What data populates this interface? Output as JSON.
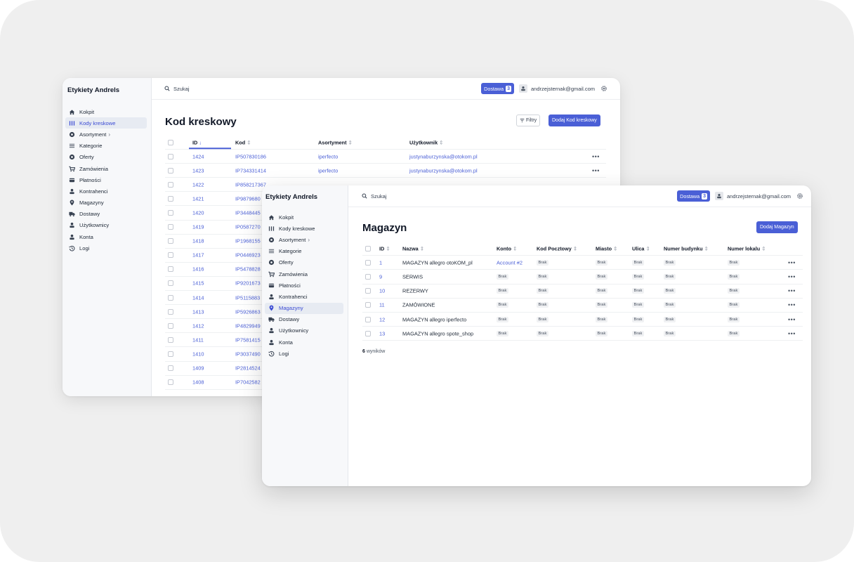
{
  "back_window": {
    "brand": "Etykiety Andrels",
    "search_placeholder": "Szukaj",
    "delivery": {
      "label": "Dostawa",
      "count": "3"
    },
    "user_email": "andrzejsternak@gmail.com",
    "page_title": "Kod kreskowy",
    "filter_label": "Filtry",
    "add_button": "Dodaj Kod kreskowy",
    "nav": [
      {
        "label": "Kokpit",
        "icon": "home-icon"
      },
      {
        "label": "Kody kreskowe",
        "icon": "barcode-icon"
      },
      {
        "label": "Asortyment",
        "icon": "box-icon"
      },
      {
        "label": "Kategorie",
        "icon": "list-icon"
      },
      {
        "label": "Oferty",
        "icon": "tag-icon"
      },
      {
        "label": "Zamówienia",
        "icon": "cart-icon"
      },
      {
        "label": "Płatności",
        "icon": "card-icon"
      },
      {
        "label": "Kontrahenci",
        "icon": "contractor-icon"
      },
      {
        "label": "Magazyny",
        "icon": "pin-icon"
      },
      {
        "label": "Dostawy",
        "icon": "truck-icon"
      },
      {
        "label": "Użytkownicy",
        "icon": "user-icon"
      },
      {
        "label": "Konta",
        "icon": "account-icon"
      },
      {
        "label": "Logi",
        "icon": "history-icon"
      }
    ],
    "table": {
      "headers": {
        "id": "ID",
        "kod": "Kod",
        "asortyment": "Asortyment",
        "uzytkownik": "Użytkownik"
      },
      "rows": [
        {
          "id": "1424",
          "kod": "IP507830186",
          "asortyment": "iperfecto",
          "user": "justynaburzynska@otokom.pl"
        },
        {
          "id": "1423",
          "kod": "IP734331414",
          "asortyment": "iperfecto",
          "user": "justynaburzynska@otokom.pl"
        },
        {
          "id": "1422",
          "kod": "IP858217367",
          "asortyment": "",
          "user": ""
        },
        {
          "id": "1421",
          "kod": "IP9879680",
          "asortyment": "",
          "user": ""
        },
        {
          "id": "1420",
          "kod": "IP3448445",
          "asortyment": "",
          "user": ""
        },
        {
          "id": "1419",
          "kod": "IP0587270",
          "asortyment": "",
          "user": ""
        },
        {
          "id": "1418",
          "kod": "IP1968155",
          "asortyment": "",
          "user": ""
        },
        {
          "id": "1417",
          "kod": "IP0446923",
          "asortyment": "",
          "user": ""
        },
        {
          "id": "1416",
          "kod": "IP5478828",
          "asortyment": "",
          "user": ""
        },
        {
          "id": "1415",
          "kod": "IP9201673",
          "asortyment": "",
          "user": ""
        },
        {
          "id": "1414",
          "kod": "IP5115883",
          "asortyment": "",
          "user": ""
        },
        {
          "id": "1413",
          "kod": "IP5926863",
          "asortyment": "",
          "user": ""
        },
        {
          "id": "1412",
          "kod": "IP4829949",
          "asortyment": "",
          "user": ""
        },
        {
          "id": "1411",
          "kod": "IP7581415",
          "asortyment": "",
          "user": ""
        },
        {
          "id": "1410",
          "kod": "IP3037490",
          "asortyment": "",
          "user": ""
        },
        {
          "id": "1409",
          "kod": "IP2814524",
          "asortyment": "",
          "user": ""
        },
        {
          "id": "1408",
          "kod": "IP7042582",
          "asortyment": "",
          "user": ""
        }
      ]
    }
  },
  "front_window": {
    "brand": "Etykiety Andrels",
    "search_placeholder": "Szukaj",
    "delivery": {
      "label": "Dostawa",
      "count": "3"
    },
    "user_email": "andrzejsternak@gmail.com",
    "page_title": "Magazyn",
    "add_button": "Dodaj Magazyn",
    "nav": [
      {
        "label": "Kokpit",
        "icon": "home-icon"
      },
      {
        "label": "Kody kreskowe",
        "icon": "barcode-icon"
      },
      {
        "label": "Asortyment",
        "icon": "box-icon"
      },
      {
        "label": "Kategorie",
        "icon": "list-icon"
      },
      {
        "label": "Oferty",
        "icon": "tag-icon"
      },
      {
        "label": "Zamówienia",
        "icon": "cart-icon"
      },
      {
        "label": "Płatności",
        "icon": "card-icon"
      },
      {
        "label": "Kontrahenci",
        "icon": "contractor-icon"
      },
      {
        "label": "Magazyny",
        "icon": "pin-icon"
      },
      {
        "label": "Dostawy",
        "icon": "truck-icon"
      },
      {
        "label": "Użytkownicy",
        "icon": "user-icon"
      },
      {
        "label": "Konta",
        "icon": "account-icon"
      },
      {
        "label": "Logi",
        "icon": "history-icon"
      }
    ],
    "table": {
      "headers": {
        "id": "ID",
        "nazwa": "Nazwa",
        "konto": "Konto",
        "kod": "Kod Pocztowy",
        "miasto": "Miasto",
        "ulica": "Ulica",
        "nr_budynku": "Numer budynku",
        "nr_lokalu": "Numer lokalu"
      },
      "rows": [
        {
          "id": "1",
          "nazwa": "MAGAZYN allegro otoKOM_pl",
          "konto": "Account #2",
          "kod": "Brak",
          "miasto": "Brak",
          "ulica": "Brak",
          "nr_budynku": "Brak",
          "nr_lokalu": "Brak"
        },
        {
          "id": "9",
          "nazwa": "SERWIS",
          "konto": "Brak",
          "kod": "Brak",
          "miasto": "Brak",
          "ulica": "Brak",
          "nr_budynku": "Brak",
          "nr_lokalu": "Brak"
        },
        {
          "id": "10",
          "nazwa": "REZERWY",
          "konto": "Brak",
          "kod": "Brak",
          "miasto": "Brak",
          "ulica": "Brak",
          "nr_budynku": "Brak",
          "nr_lokalu": "Brak"
        },
        {
          "id": "11",
          "nazwa": "ZAMÓWIONE",
          "konto": "Brak",
          "kod": "Brak",
          "miasto": "Brak",
          "ulica": "Brak",
          "nr_budynku": "Brak",
          "nr_lokalu": "Brak"
        },
        {
          "id": "12",
          "nazwa": "MAGAZYN allegro iperfecto",
          "konto": "Brak",
          "kod": "Brak",
          "miasto": "Brak",
          "ulica": "Brak",
          "nr_budynku": "Brak",
          "nr_lokalu": "Brak"
        },
        {
          "id": "13",
          "nazwa": "MAGAZYN allegro spote_shop",
          "konto": "Brak",
          "kod": "Brak",
          "miasto": "Brak",
          "ulica": "Brak",
          "nr_budynku": "Brak",
          "nr_lokalu": "Brak"
        }
      ]
    },
    "results": {
      "count": "6",
      "label": "wyników"
    }
  }
}
